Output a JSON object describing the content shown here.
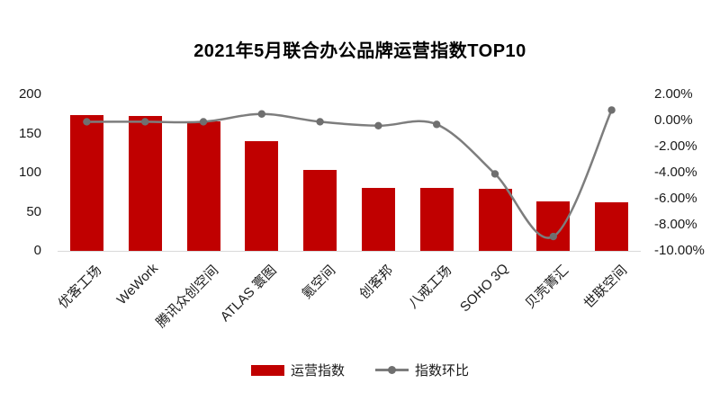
{
  "title": "2021年5月联合办公品牌运营指数TOP10",
  "colors": {
    "bar": "#c00000",
    "line": "#7d7d7d",
    "marker": "#6f6f6f",
    "baseline": "#d9d9d9",
    "text": "#1a1a1a",
    "background": "#ffffff"
  },
  "chart_data": {
    "type": "bar",
    "combo": "bar+line",
    "title": "2021年5月联合办公品牌运营指数TOP10",
    "categories": [
      "优客工场",
      "WeWork",
      "腾讯众创空间",
      "ATLAS 寰图",
      "氪空间",
      "创客邦",
      "八戒工场",
      "SOHO 3Q",
      "贝壳菁汇",
      "世联空间"
    ],
    "series": [
      {
        "name": "运营指数",
        "type": "bar",
        "axis": "left",
        "color": "#c00000",
        "values": [
          173,
          172,
          165,
          140,
          104,
          81,
          80,
          79,
          63,
          62
        ]
      },
      {
        "name": "指数环比",
        "type": "line",
        "axis": "right",
        "color": "#7d7d7d",
        "values": [
          -0.1,
          -0.1,
          -0.1,
          0.5,
          -0.1,
          -0.4,
          -0.3,
          -4.1,
          -8.9,
          0.8
        ]
      }
    ],
    "left_axis": {
      "min": 0,
      "max": 200,
      "tick_values": [
        200,
        150,
        100,
        50,
        0
      ],
      "ticks": [
        "200",
        "150",
        "100",
        "50",
        "0"
      ]
    },
    "right_axis": {
      "min": -10,
      "max": 2,
      "tick_values": [
        2,
        0,
        -2,
        -4,
        -6,
        -8,
        -10
      ],
      "ticks": [
        "2.00%",
        "0.00%",
        "-2.00%",
        "-4.00%",
        "-6.00%",
        "-8.00%",
        "-10.00%"
      ]
    },
    "legend": [
      {
        "label": "运营指数",
        "type": "bar",
        "color": "#c00000"
      },
      {
        "label": "指数环比",
        "type": "line",
        "color": "#7d7d7d"
      }
    ],
    "grid": false,
    "legend_position": "bottom",
    "xlabel": "",
    "ylabel": ""
  }
}
